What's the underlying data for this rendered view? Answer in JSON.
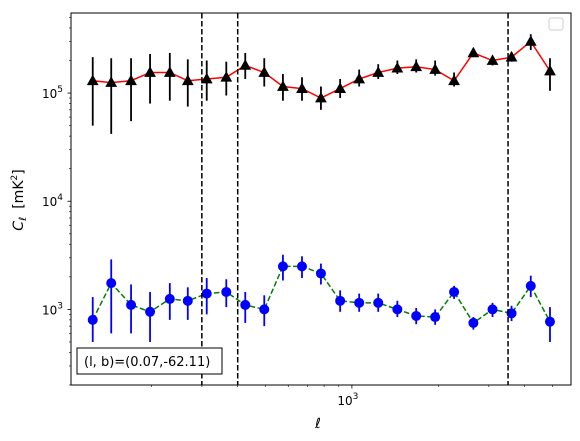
{
  "chart_data": {
    "type": "line",
    "xlabel": "ℓ",
    "ylabel_main": "C",
    "ylabel_sub": "ℓ",
    "ylabel_unit": "[mK",
    "ylabel_unit_sup": "2",
    "ylabel_unit_close": "]",
    "xscale": "log",
    "yscale": "log",
    "xlim": [
      105,
      5800
    ],
    "ylim": [
      200,
      550000
    ],
    "x_ticks": [
      {
        "value": 1000,
        "base": "10",
        "exp": "3"
      }
    ],
    "y_ticks": [
      {
        "value": 1000,
        "base": "10",
        "exp": "3"
      },
      {
        "value": 10000,
        "base": "10",
        "exp": "4"
      },
      {
        "value": 100000,
        "base": "10",
        "exp": "5"
      }
    ],
    "legend_placement": "top-right",
    "annotation": "(l, b)=(0.07,-62.11)",
    "vlines": [
      300,
      400,
      3500
    ],
    "series": [
      {
        "color": "#ff0000",
        "marker_color": "#000000",
        "err_color": "#000000",
        "linestyle": "solid",
        "marker": "triangle",
        "points": [
          {
            "x": 125,
            "y": 130000,
            "lo": 50000,
            "hi": 215000
          },
          {
            "x": 145,
            "y": 125000,
            "lo": 42000,
            "hi": 210000
          },
          {
            "x": 170,
            "y": 130000,
            "lo": 55000,
            "hi": 210000
          },
          {
            "x": 198,
            "y": 155000,
            "lo": 80000,
            "hi": 230000
          },
          {
            "x": 232,
            "y": 155000,
            "lo": 85000,
            "hi": 235000
          },
          {
            "x": 268,
            "y": 130000,
            "lo": 75000,
            "hi": 205000
          },
          {
            "x": 312,
            "y": 135000,
            "lo": 85000,
            "hi": 200000
          },
          {
            "x": 365,
            "y": 140000,
            "lo": 95000,
            "hi": 195000
          },
          {
            "x": 425,
            "y": 180000,
            "lo": 135000,
            "hi": 235000
          },
          {
            "x": 495,
            "y": 155000,
            "lo": 115000,
            "hi": 210000
          },
          {
            "x": 575,
            "y": 115000,
            "lo": 85000,
            "hi": 150000
          },
          {
            "x": 670,
            "y": 110000,
            "lo": 85000,
            "hi": 140000
          },
          {
            "x": 780,
            "y": 90000,
            "lo": 70000,
            "hi": 115000
          },
          {
            "x": 910,
            "y": 110000,
            "lo": 90000,
            "hi": 135000
          },
          {
            "x": 1060,
            "y": 135000,
            "lo": 115000,
            "hi": 165000
          },
          {
            "x": 1235,
            "y": 155000,
            "lo": 135000,
            "hi": 185000
          },
          {
            "x": 1440,
            "y": 170000,
            "lo": 150000,
            "hi": 200000
          },
          {
            "x": 1675,
            "y": 175000,
            "lo": 155000,
            "hi": 205000
          },
          {
            "x": 1950,
            "y": 165000,
            "lo": 145000,
            "hi": 200000
          },
          {
            "x": 2270,
            "y": 130000,
            "lo": 115000,
            "hi": 155000
          },
          {
            "x": 2650,
            "y": 235000,
            "lo": 215000,
            "hi": 255000
          },
          {
            "x": 3090,
            "y": 200000,
            "lo": 180000,
            "hi": 220000
          },
          {
            "x": 3600,
            "y": 215000,
            "lo": 195000,
            "hi": 240000
          },
          {
            "x": 4200,
            "y": 300000,
            "lo": 250000,
            "hi": 350000
          },
          {
            "x": 4900,
            "y": 160000,
            "lo": 105000,
            "hi": 210000
          }
        ]
      },
      {
        "color": "#008000",
        "marker_color": "#0000ff",
        "err_color": "#0000ff",
        "linestyle": "dashed",
        "marker": "circle",
        "points": [
          {
            "x": 125,
            "y": 800,
            "lo": 500,
            "hi": 1300
          },
          {
            "x": 145,
            "y": 1750,
            "lo": 600,
            "hi": 2900
          },
          {
            "x": 170,
            "y": 1100,
            "lo": 600,
            "hi": 1700
          },
          {
            "x": 198,
            "y": 950,
            "lo": 500,
            "hi": 1450
          },
          {
            "x": 232,
            "y": 1250,
            "lo": 800,
            "hi": 1750
          },
          {
            "x": 268,
            "y": 1200,
            "lo": 800,
            "hi": 1600
          },
          {
            "x": 312,
            "y": 1400,
            "lo": 900,
            "hi": 1950
          },
          {
            "x": 365,
            "y": 1450,
            "lo": 1050,
            "hi": 1900
          },
          {
            "x": 425,
            "y": 1100,
            "lo": 750,
            "hi": 1450
          },
          {
            "x": 495,
            "y": 1000,
            "lo": 700,
            "hi": 1350
          },
          {
            "x": 575,
            "y": 2500,
            "lo": 1850,
            "hi": 3200
          },
          {
            "x": 670,
            "y": 2500,
            "lo": 1950,
            "hi": 3100
          },
          {
            "x": 780,
            "y": 2150,
            "lo": 1700,
            "hi": 2650
          },
          {
            "x": 910,
            "y": 1200,
            "lo": 950,
            "hi": 1500
          },
          {
            "x": 1060,
            "y": 1150,
            "lo": 950,
            "hi": 1400
          },
          {
            "x": 1235,
            "y": 1150,
            "lo": 950,
            "hi": 1400
          },
          {
            "x": 1440,
            "y": 1000,
            "lo": 850,
            "hi": 1200
          },
          {
            "x": 1675,
            "y": 870,
            "lo": 730,
            "hi": 1030
          },
          {
            "x": 1950,
            "y": 850,
            "lo": 720,
            "hi": 1000
          },
          {
            "x": 2270,
            "y": 1450,
            "lo": 1250,
            "hi": 1650
          },
          {
            "x": 2650,
            "y": 750,
            "lo": 650,
            "hi": 850
          },
          {
            "x": 3090,
            "y": 1000,
            "lo": 850,
            "hi": 1150
          },
          {
            "x": 3600,
            "y": 920,
            "lo": 780,
            "hi": 1080
          },
          {
            "x": 4200,
            "y": 1650,
            "lo": 1300,
            "hi": 2050
          },
          {
            "x": 4900,
            "y": 770,
            "lo": 500,
            "hi": 1050
          }
        ]
      }
    ]
  }
}
